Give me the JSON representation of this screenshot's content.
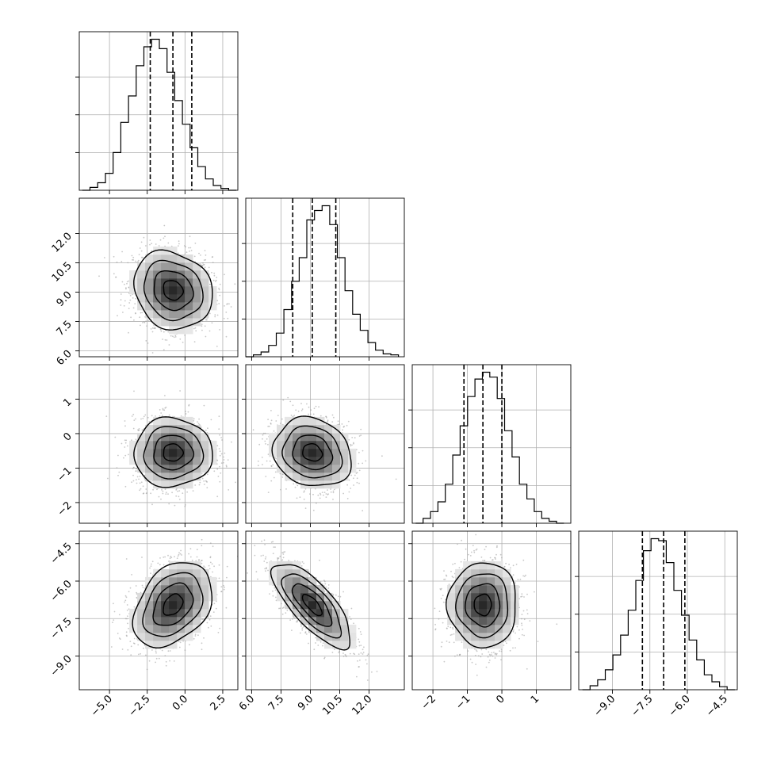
{
  "chart_data": {
    "type": "corner",
    "n_params": 4,
    "axis_labels": [
      "",
      "",
      "",
      ""
    ],
    "params": [
      {
        "mean": -0.8,
        "std": 1.3,
        "range": [
          -7.0,
          3.5
        ],
        "ticks": [
          -5.0,
          -2.5,
          0.0,
          2.5
        ],
        "tick_labels": [
          "−5.0",
          "−2.5",
          "0.0",
          "2.5"
        ]
      },
      {
        "mean": 9.1,
        "std": 1.0,
        "range": [
          5.7,
          13.8
        ],
        "ticks": [
          6.0,
          7.5,
          9.0,
          10.5,
          12.0
        ],
        "tick_labels": [
          "6.0",
          "7.5",
          "9.0",
          "10.5",
          "12.0"
        ]
      },
      {
        "mean": -0.55,
        "std": 0.5,
        "range": [
          -2.6,
          2.0
        ],
        "ticks": [
          -2,
          -1,
          0,
          1
        ],
        "tick_labels": [
          "−2",
          "−1",
          "0",
          "1"
        ]
      },
      {
        "mean": -6.95,
        "std": 0.85,
        "range": [
          -10.35,
          -4.0
        ],
        "ticks": [
          -9.0,
          -7.5,
          -6.0,
          -4.5
        ],
        "tick_labels": [
          "−9.0",
          "−7.5",
          "−6.0",
          "−4.5"
        ]
      }
    ],
    "correlations": [
      {
        "pair": [
          0,
          1
        ],
        "rho": -0.15
      },
      {
        "pair": [
          0,
          2
        ],
        "rho": 0.0
      },
      {
        "pair": [
          0,
          3
        ],
        "rho": 0.35
      },
      {
        "pair": [
          1,
          2
        ],
        "rho": -0.15
      },
      {
        "pair": [
          1,
          3
        ],
        "rho": -0.75
      },
      {
        "pair": [
          2,
          3
        ],
        "rho": 0.0
      }
    ],
    "quantiles": [
      [
        -2.3,
        -0.8,
        0.45
      ],
      [
        8.1,
        9.1,
        10.3
      ],
      [
        -1.1,
        -0.55,
        0.0
      ],
      [
        -7.8,
        -6.95,
        -6.1
      ]
    ],
    "histograms": [
      {
        "bins": 20,
        "range": [
          -6.8,
          3.4
        ],
        "counts": [
          0,
          3,
          8,
          18,
          40,
          72,
          100,
          132,
          152,
          160,
          150,
          125,
          95,
          70,
          45,
          25,
          12,
          5,
          2,
          0
        ]
      },
      {
        "bins": 20,
        "range": [
          5.7,
          13.5
        ],
        "counts": [
          0,
          2,
          5,
          12,
          25,
          50,
          80,
          105,
          145,
          155,
          160,
          140,
          105,
          70,
          45,
          28,
          15,
          7,
          3,
          2
        ]
      },
      {
        "bins": 20,
        "range": [
          -2.5,
          1.8
        ],
        "counts": [
          0,
          5,
          12,
          22,
          40,
          70,
          100,
          130,
          148,
          155,
          150,
          128,
          95,
          68,
          40,
          25,
          12,
          5,
          2,
          0
        ]
      },
      {
        "bins": 20,
        "range": [
          -10.2,
          -4.1
        ],
        "counts": [
          0,
          4,
          10,
          20,
          35,
          55,
          80,
          110,
          140,
          152,
          150,
          128,
          100,
          75,
          50,
          30,
          15,
          8,
          3,
          0
        ]
      }
    ],
    "hist_yticks": [
      0.25,
      0.5,
      0.75
    ],
    "contour_levels": [
      0.5,
      1.0,
      1.5,
      2.0
    ],
    "grid": true,
    "tick_rotation_deg": 45
  }
}
